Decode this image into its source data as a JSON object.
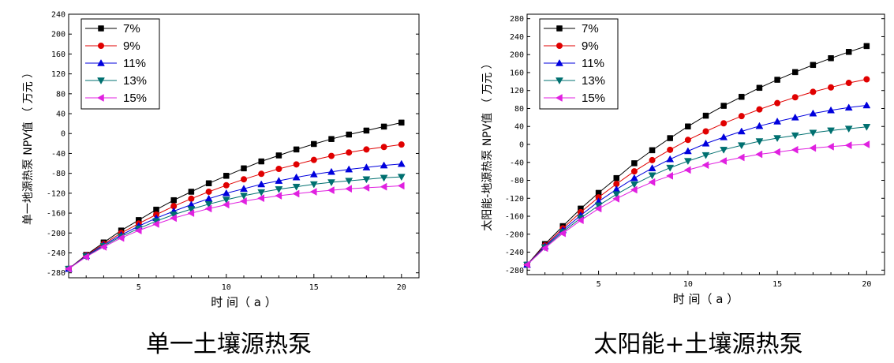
{
  "chart_data": [
    {
      "type": "line",
      "caption": "单一土壤源热泵",
      "xlabel": "时 间（ a ）",
      "ylabel": "单一地源热泵 NPV值 （ 万元 ）",
      "xlim": [
        1,
        21
      ],
      "ylim": [
        -290,
        240
      ],
      "xticks": [
        5,
        10,
        15,
        20
      ],
      "yticks": [
        240,
        200,
        160,
        120,
        80,
        40,
        0,
        -40,
        -80,
        -120,
        -160,
        -200,
        -240,
        -280
      ],
      "grid": false,
      "legend_position": "top-left",
      "x": [
        1,
        2,
        3,
        4,
        5,
        6,
        7,
        8,
        9,
        10,
        11,
        12,
        13,
        14,
        15,
        16,
        17,
        18,
        19,
        20
      ],
      "series": [
        {
          "name": "7%",
          "color": "#000000",
          "marker": "square",
          "values": [
            -272,
            -244,
            -219,
            -195,
            -174,
            -153,
            -134,
            -117,
            -100,
            -85,
            -70,
            -56,
            -44,
            -32,
            -21,
            -11,
            -2,
            6,
            14,
            22
          ]
        },
        {
          "name": "9%",
          "color": "#e00000",
          "marker": "circle",
          "values": [
            -272,
            -245,
            -222,
            -200,
            -181,
            -163,
            -146,
            -131,
            -117,
            -104,
            -92,
            -81,
            -71,
            -62,
            -53,
            -45,
            -38,
            -32,
            -27,
            -22
          ]
        },
        {
          "name": "11%",
          "color": "#0000dd",
          "marker": "triangle-up",
          "values": [
            -272,
            -246,
            -224,
            -204,
            -186,
            -170,
            -156,
            -143,
            -131,
            -120,
            -111,
            -102,
            -95,
            -88,
            -82,
            -77,
            -72,
            -68,
            -64,
            -61
          ]
        },
        {
          "name": "13%",
          "color": "#007070",
          "marker": "triangle-down",
          "values": [
            -272,
            -247,
            -226,
            -207,
            -191,
            -176,
            -163,
            -152,
            -142,
            -133,
            -125,
            -118,
            -112,
            -107,
            -102,
            -98,
            -95,
            -92,
            -89,
            -87
          ]
        },
        {
          "name": "15%",
          "color": "#e020e0",
          "marker": "triangle-left",
          "values": [
            -272,
            -248,
            -228,
            -210,
            -195,
            -182,
            -170,
            -160,
            -151,
            -143,
            -136,
            -130,
            -125,
            -121,
            -117,
            -114,
            -111,
            -109,
            -107,
            -105
          ]
        }
      ]
    },
    {
      "type": "line",
      "caption": "太阳能+土壤源热泵",
      "xlabel": "时 间（ a ）",
      "ylabel": "太阳能-地源热泵 NPV值 （ 万元 ）",
      "xlim": [
        1,
        21
      ],
      "ylim": [
        -290,
        290
      ],
      "xticks": [
        5,
        10,
        15,
        20
      ],
      "yticks": [
        280,
        240,
        200,
        160,
        120,
        80,
        40,
        0,
        -40,
        -80,
        -120,
        -160,
        -200,
        -240,
        -280
      ],
      "grid": false,
      "legend_position": "top-left",
      "x": [
        1,
        2,
        3,
        4,
        5,
        6,
        7,
        8,
        9,
        10,
        11,
        12,
        13,
        14,
        15,
        16,
        17,
        18,
        19,
        20
      ],
      "series": [
        {
          "name": "7%",
          "color": "#000000",
          "marker": "square",
          "values": [
            -268,
            -222,
            -182,
            -143,
            -108,
            -75,
            -42,
            -13,
            14,
            40,
            64,
            86,
            106,
            126,
            144,
            161,
            177,
            192,
            206,
            219
          ]
        },
        {
          "name": "9%",
          "color": "#e00000",
          "marker": "circle",
          "values": [
            -268,
            -225,
            -187,
            -151,
            -118,
            -88,
            -60,
            -35,
            -12,
            10,
            29,
            47,
            63,
            78,
            92,
            105,
            117,
            127,
            137,
            145
          ]
        },
        {
          "name": "11%",
          "color": "#0000dd",
          "marker": "triangle-up",
          "values": [
            -268,
            -227,
            -191,
            -158,
            -127,
            -100,
            -75,
            -53,
            -33,
            -15,
            2,
            16,
            29,
            41,
            51,
            60,
            69,
            76,
            82,
            87
          ]
        },
        {
          "name": "13%",
          "color": "#007070",
          "marker": "triangle-down",
          "values": [
            -268,
            -229,
            -195,
            -164,
            -136,
            -111,
            -89,
            -69,
            -52,
            -37,
            -24,
            -12,
            -2,
            7,
            14,
            20,
            26,
            31,
            35,
            39
          ]
        },
        {
          "name": "15%",
          "color": "#e020e0",
          "marker": "triangle-left",
          "values": [
            -268,
            -231,
            -198,
            -169,
            -143,
            -121,
            -101,
            -84,
            -70,
            -57,
            -46,
            -37,
            -29,
            -22,
            -17,
            -12,
            -8,
            -5,
            -2,
            0
          ]
        }
      ]
    }
  ]
}
